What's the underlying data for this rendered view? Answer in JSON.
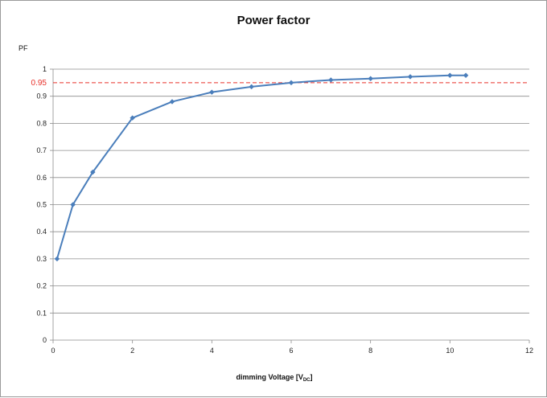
{
  "chart_data": {
    "type": "line",
    "title": "Power factor",
    "ylabel": "PF",
    "xlabel": {
      "main": "dimming Voltage [V",
      "sub": "DC",
      "end": "]"
    },
    "xlim": [
      0,
      12
    ],
    "ylim": [
      0,
      1
    ],
    "x_ticks": [
      "0",
      "2",
      "4",
      "6",
      "8",
      "10",
      "12"
    ],
    "y_ticks": [
      "0",
      "0.1",
      "0.2",
      "0.3",
      "0.4",
      "0.5",
      "0.6",
      "0.7",
      "0.8",
      "0.9",
      "1"
    ],
    "grid": "horizontal",
    "series": [
      {
        "color": "#4a7ebb",
        "x": [
          0.1,
          0.5,
          1,
          2,
          3,
          4,
          5,
          6,
          7,
          8,
          9,
          10,
          10.4
        ],
        "y": [
          0.3,
          0.5,
          0.62,
          0.82,
          0.88,
          0.915,
          0.935,
          0.95,
          0.96,
          0.965,
          0.972,
          0.977,
          0.977
        ]
      }
    ],
    "reference_line": {
      "value": 0.95,
      "label": "0.95",
      "color": "#e8302a",
      "style": "dashed"
    }
  }
}
